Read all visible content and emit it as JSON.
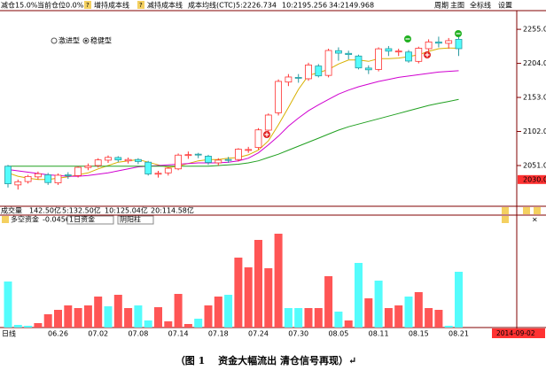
{
  "header": {
    "reduce": "减仓15.0%",
    "position": "当前仓位0.0%",
    "help_icon": "?",
    "add_cost": "增持成本线",
    "cut_cost": "减持成本线",
    "avg_cost": "成本均线(CTC)",
    "menu": [
      "周期",
      "主图",
      "全标线",
      "设置"
    ],
    "modes": [
      "激进型",
      "稳健型"
    ]
  },
  "volume_row": {
    "label": "成交量",
    "total": "142.50亿",
    "ma5": "5:132.50亿",
    "ma10": "10:125.04亿",
    "ma20": "20:114.58亿"
  },
  "caption": "（图 1　 资金大幅流出 清仓信号再现）↵",
  "chart_data": [
    {
      "type": "candlestick",
      "up_color": "#ff3232",
      "down_color": "#54fcfc",
      "open": [
        2050,
        2022,
        2027,
        2034,
        2037,
        2025,
        2037,
        2036,
        2048,
        2051,
        2059,
        2063,
        2058,
        2060,
        2056,
        2038,
        2040,
        2046,
        2066,
        2068,
        2065,
        2055,
        2060,
        2060,
        2075,
        2078,
        2104,
        2130,
        2176,
        2183,
        2181,
        2200,
        2186,
        2223,
        2219,
        2215,
        2197,
        2195,
        2226,
        2222,
        2221,
        2207,
        2226,
        2236,
        2234,
        2240
      ],
      "high": [
        2052,
        2030,
        2037,
        2042,
        2040,
        2039,
        2041,
        2050,
        2054,
        2062,
        2066,
        2065,
        2063,
        2062,
        2058,
        2043,
        2049,
        2069,
        2072,
        2070,
        2067,
        2062,
        2064,
        2077,
        2079,
        2107,
        2129,
        2180,
        2188,
        2188,
        2205,
        2203,
        2226,
        2228,
        2223,
        2217,
        2201,
        2228,
        2230,
        2226,
        2224,
        2229,
        2240,
        2244,
        2242,
        2245
      ],
      "low": [
        2018,
        2015,
        2024,
        2030,
        2022,
        2022,
        2031,
        2033,
        2044,
        2048,
        2055,
        2056,
        2054,
        2053,
        2036,
        2033,
        2036,
        2044,
        2061,
        2062,
        2052,
        2051,
        2055,
        2057,
        2070,
        2075,
        2100,
        2126,
        2170,
        2175,
        2178,
        2183,
        2183,
        2208,
        2210,
        2195,
        2188,
        2192,
        2215,
        2215,
        2205,
        2204,
        2222,
        2228,
        2226,
        2215
      ],
      "close": [
        2023.7,
        2026.7,
        2034.6,
        2038.7,
        2025.5,
        2036.5,
        2036.5,
        2048.3,
        2050.4,
        2059.4,
        2063.2,
        2059.4,
        2060.0,
        2057.0,
        2038.4,
        2039.4,
        2046.9,
        2066.6,
        2067.3,
        2066.7,
        2055.6,
        2059.1,
        2059.9,
        2075.5,
        2075.0,
        2104.4,
        2126.6,
        2177.0,
        2183.6,
        2181.9,
        2201.6,
        2185.3,
        2223.3,
        2219.3,
        2217.2,
        2197.2,
        2194.4,
        2225.8,
        2222.3,
        2222.4,
        2207.5,
        2226.7,
        2236.1,
        2234.2,
        2238,
        2226
      ],
      "lines": [
        {
          "name": "5:2226.734",
          "color": "#d8b000",
          "values": [
            2040,
            2035,
            2032,
            2030,
            2030,
            2032,
            2034,
            2037,
            2040,
            2046,
            2051,
            2056,
            2058,
            2060,
            2056,
            2052,
            2048,
            2050,
            2054,
            2058,
            2060,
            2060,
            2062,
            2063,
            2067,
            2074,
            2088,
            2112,
            2138,
            2165,
            2186,
            2190,
            2195,
            2203,
            2209,
            2209,
            2207,
            2211,
            2211,
            2212,
            2214,
            2217,
            2222,
            2226,
            2227,
            2226.7
          ]
        },
        {
          "name": "10:2195.256",
          "color": "#d000d0",
          "values": [
            2045,
            2043,
            2041,
            2039,
            2037,
            2036,
            2035,
            2035,
            2036,
            2038,
            2040,
            2043,
            2046,
            2049,
            2050,
            2051,
            2052,
            2053,
            2054,
            2055,
            2055,
            2055,
            2056,
            2058,
            2062,
            2070,
            2082,
            2095,
            2110,
            2122,
            2133,
            2142,
            2150,
            2158,
            2164,
            2169,
            2173,
            2177,
            2180,
            2183,
            2185,
            2187,
            2189,
            2191,
            2192,
            2193
          ]
        },
        {
          "name": "34:2149.968",
          "color": "#20a020",
          "values": [
            2050,
            2050,
            2050,
            2050,
            2050,
            2050,
            2050,
            2050,
            2050,
            2050,
            2050,
            2050,
            2050,
            2050,
            2050,
            2050,
            2050,
            2050,
            2050,
            2050,
            2050,
            2051,
            2052,
            2053,
            2055,
            2058,
            2063,
            2068,
            2074,
            2080,
            2086,
            2092,
            2098,
            2104,
            2109,
            2113,
            2117,
            2121,
            2125,
            2129,
            2133,
            2137,
            2141,
            2144,
            2147,
            2150
          ]
        }
      ],
      "ylim": [
        1990,
        2283
      ],
      "yticks": [
        {
          "value": 2255,
          "label": "2255.0"
        },
        {
          "value": 2204,
          "label": "2204.0"
        },
        {
          "value": 2153,
          "label": "2153.0"
        },
        {
          "value": 2102,
          "label": "2102.0"
        },
        {
          "value": 2051,
          "label": "2051.0"
        }
      ],
      "price_marker": {
        "value": 2030,
        "label": "2030.0"
      }
    },
    {
      "type": "bar",
      "title": "多空资金",
      "current": -0.0456,
      "options": [
        "1日资金",
        "阴阳柱"
      ],
      "period": "日线",
      "end_date": "2014-09-02",
      "categories": [
        null,
        null,
        null,
        null,
        null,
        "06.26",
        null,
        null,
        null,
        "07.02",
        null,
        null,
        null,
        "07.08",
        null,
        null,
        null,
        "07.14",
        null,
        null,
        null,
        "07.18",
        null,
        null,
        null,
        "07.24",
        null,
        null,
        null,
        "07.30",
        null,
        null,
        null,
        "08.05",
        null,
        null,
        null,
        "08.11",
        null,
        null,
        null,
        "08.15",
        null,
        null,
        null,
        "08.21"
      ],
      "values": [
        52,
        3,
        2,
        5,
        15,
        20,
        25,
        22,
        25,
        35,
        24,
        37,
        22,
        25,
        8,
        23,
        7,
        38,
        4,
        10,
        25,
        35,
        37,
        79,
        68,
        99,
        67,
        106,
        22,
        22,
        22,
        22,
        58,
        18,
        8,
        73,
        33,
        53,
        22,
        25,
        35,
        40,
        22,
        20,
        2,
        63
      ],
      "colors": [
        "#54fcfc",
        "#54fcfc",
        "#54fcfc",
        "#ff5555",
        "#ff5555",
        "#ff5555",
        "#ff5555",
        "#ff5555",
        "#ff5555",
        "#ff5555",
        "#54fcfc",
        "#ff5555",
        "#ff5555",
        "#54fcfc",
        "#54fcfc",
        "#ff5555",
        "#ff5555",
        "#ff5555",
        "#ff5555",
        "#54fcfc",
        "#ff5555",
        "#ff5555",
        "#54fcfc",
        "#ff5555",
        "#ff5555",
        "#ff5555",
        "#ff5555",
        "#ff5555",
        "#54fcfc",
        "#54fcfc",
        "#ff5555",
        "#ff5555",
        "#ff5555",
        "#54fcfc",
        "#ff5555",
        "#54fcfc",
        "#ff5555",
        "#54fcfc",
        "#ff5555",
        "#ff5555",
        "#54fcfc",
        "#ff5555",
        "#ff5555",
        "#ff5555",
        "#54fcfc",
        "#54fcfc"
      ],
      "ylim": [
        0,
        117
      ]
    }
  ]
}
